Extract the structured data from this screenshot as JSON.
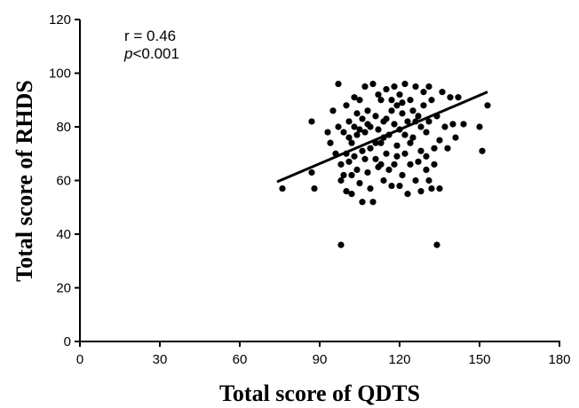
{
  "chart_data": {
    "type": "scatter",
    "xlabel": "Total score of QDTS",
    "ylabel": "Total score of RHDS",
    "xlim": [
      0,
      180
    ],
    "ylim": [
      0,
      120
    ],
    "xticks": [
      0,
      30,
      60,
      90,
      120,
      150,
      180
    ],
    "yticks": [
      0,
      20,
      40,
      60,
      80,
      100,
      120
    ],
    "grid": false,
    "annotations": {
      "r_text": "r = 0.46",
      "p_symbol": "p",
      "p_text": "<0.001"
    },
    "regression_line": {
      "x": [
        74,
        153
      ],
      "y": [
        59.5,
        93
      ]
    },
    "points": [
      {
        "x": 76,
        "y": 57
      },
      {
        "x": 87,
        "y": 63
      },
      {
        "x": 87,
        "y": 82
      },
      {
        "x": 88,
        "y": 57
      },
      {
        "x": 93,
        "y": 78
      },
      {
        "x": 94,
        "y": 74
      },
      {
        "x": 97,
        "y": 96
      },
      {
        "x": 98,
        "y": 36
      },
      {
        "x": 97,
        "y": 80
      },
      {
        "x": 98,
        "y": 66
      },
      {
        "x": 98,
        "y": 60
      },
      {
        "x": 99,
        "y": 78
      },
      {
        "x": 99,
        "y": 62
      },
      {
        "x": 100,
        "y": 70
      },
      {
        "x": 100,
        "y": 56
      },
      {
        "x": 101,
        "y": 82
      },
      {
        "x": 101,
        "y": 67
      },
      {
        "x": 102,
        "y": 74
      },
      {
        "x": 102,
        "y": 55
      },
      {
        "x": 103,
        "y": 80
      },
      {
        "x": 103,
        "y": 91
      },
      {
        "x": 104,
        "y": 64
      },
      {
        "x": 104,
        "y": 77
      },
      {
        "x": 105,
        "y": 90
      },
      {
        "x": 105,
        "y": 59
      },
      {
        "x": 106,
        "y": 83
      },
      {
        "x": 106,
        "y": 71
      },
      {
        "x": 106,
        "y": 52
      },
      {
        "x": 107,
        "y": 78
      },
      {
        "x": 107,
        "y": 95
      },
      {
        "x": 108,
        "y": 86
      },
      {
        "x": 108,
        "y": 63
      },
      {
        "x": 109,
        "y": 72
      },
      {
        "x": 109,
        "y": 80
      },
      {
        "x": 110,
        "y": 52
      },
      {
        "x": 110,
        "y": 96
      },
      {
        "x": 111,
        "y": 68
      },
      {
        "x": 111,
        "y": 84
      },
      {
        "x": 112,
        "y": 79
      },
      {
        "x": 112,
        "y": 65
      },
      {
        "x": 113,
        "y": 74
      },
      {
        "x": 113,
        "y": 90
      },
      {
        "x": 114,
        "y": 82
      },
      {
        "x": 114,
        "y": 60
      },
      {
        "x": 115,
        "y": 70
      },
      {
        "x": 115,
        "y": 94
      },
      {
        "x": 116,
        "y": 77
      },
      {
        "x": 117,
        "y": 86
      },
      {
        "x": 117,
        "y": 58
      },
      {
        "x": 118,
        "y": 81
      },
      {
        "x": 118,
        "y": 66
      },
      {
        "x": 119,
        "y": 88
      },
      {
        "x": 119,
        "y": 73
      },
      {
        "x": 120,
        "y": 92
      },
      {
        "x": 120,
        "y": 79
      },
      {
        "x": 121,
        "y": 62
      },
      {
        "x": 121,
        "y": 85
      },
      {
        "x": 122,
        "y": 96
      },
      {
        "x": 122,
        "y": 70
      },
      {
        "x": 123,
        "y": 55
      },
      {
        "x": 123,
        "y": 82
      },
      {
        "x": 124,
        "y": 90
      },
      {
        "x": 124,
        "y": 66
      },
      {
        "x": 125,
        "y": 76
      },
      {
        "x": 126,
        "y": 95
      },
      {
        "x": 126,
        "y": 60
      },
      {
        "x": 127,
        "y": 84
      },
      {
        "x": 128,
        "y": 71
      },
      {
        "x": 128,
        "y": 56
      },
      {
        "x": 129,
        "y": 88
      },
      {
        "x": 129,
        "y": 93
      },
      {
        "x": 130,
        "y": 64
      },
      {
        "x": 130,
        "y": 78
      },
      {
        "x": 131,
        "y": 60
      },
      {
        "x": 131,
        "y": 82
      },
      {
        "x": 132,
        "y": 57
      },
      {
        "x": 132,
        "y": 90
      },
      {
        "x": 133,
        "y": 72
      },
      {
        "x": 134,
        "y": 36
      },
      {
        "x": 134,
        "y": 84
      },
      {
        "x": 135,
        "y": 57
      },
      {
        "x": 136,
        "y": 93
      },
      {
        "x": 137,
        "y": 80
      },
      {
        "x": 138,
        "y": 72
      },
      {
        "x": 139,
        "y": 91
      },
      {
        "x": 140,
        "y": 81
      },
      {
        "x": 141,
        "y": 76
      },
      {
        "x": 142,
        "y": 91
      },
      {
        "x": 144,
        "y": 81
      },
      {
        "x": 150,
        "y": 80
      },
      {
        "x": 151,
        "y": 71
      },
      {
        "x": 153,
        "y": 88
      },
      {
        "x": 95,
        "y": 86
      },
      {
        "x": 96,
        "y": 70
      },
      {
        "x": 100,
        "y": 88
      },
      {
        "x": 102,
        "y": 62
      },
      {
        "x": 104,
        "y": 85
      },
      {
        "x": 107,
        "y": 68
      },
      {
        "x": 109,
        "y": 57
      },
      {
        "x": 112,
        "y": 92
      },
      {
        "x": 114,
        "y": 76
      },
      {
        "x": 116,
        "y": 64
      },
      {
        "x": 118,
        "y": 95
      },
      {
        "x": 120,
        "y": 58
      },
      {
        "x": 122,
        "y": 77
      },
      {
        "x": 125,
        "y": 86
      },
      {
        "x": 127,
        "y": 67
      },
      {
        "x": 131,
        "y": 95
      },
      {
        "x": 133,
        "y": 66
      },
      {
        "x": 135,
        "y": 75
      },
      {
        "x": 103,
        "y": 69
      },
      {
        "x": 108,
        "y": 81
      },
      {
        "x": 111,
        "y": 74
      },
      {
        "x": 115,
        "y": 83
      },
      {
        "x": 119,
        "y": 69
      },
      {
        "x": 124,
        "y": 74
      },
      {
        "x": 128,
        "y": 80
      },
      {
        "x": 101,
        "y": 76
      },
      {
        "x": 105,
        "y": 79
      },
      {
        "x": 113,
        "y": 66
      },
      {
        "x": 117,
        "y": 90
      },
      {
        "x": 121,
        "y": 89
      },
      {
        "x": 126,
        "y": 82
      },
      {
        "x": 130,
        "y": 69
      }
    ]
  }
}
